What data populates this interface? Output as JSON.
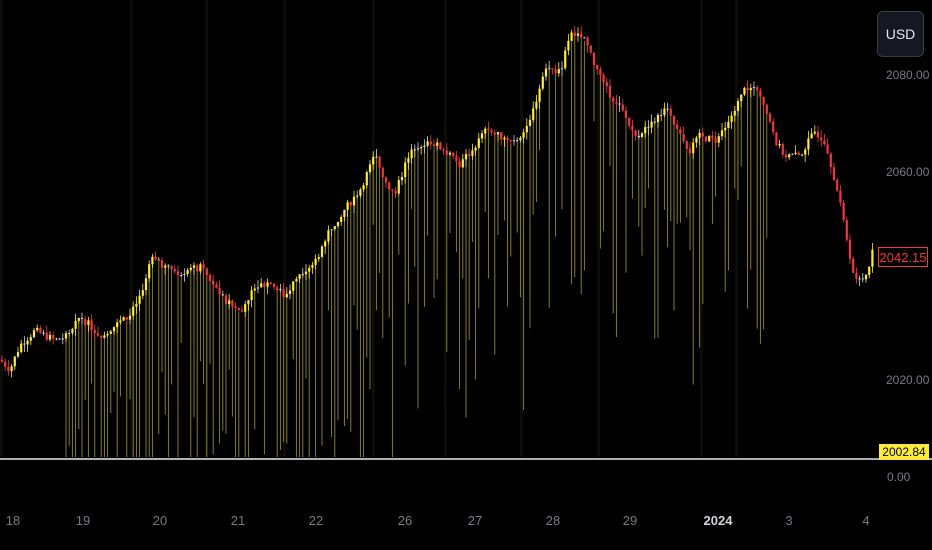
{
  "controls": {
    "currency": "USD"
  },
  "price_axis": {
    "ticks": [
      "2080.00",
      "2060.00",
      "2020.00"
    ],
    "last_price": "2042.15",
    "low_marker": "2002.84",
    "indicator_zero": "0.00"
  },
  "time_axis": {
    "labels": [
      "18",
      "19",
      "20",
      "21",
      "22",
      "26",
      "27",
      "28",
      "29",
      "2024",
      "3",
      "4"
    ],
    "bold_label": "2024"
  },
  "colors": {
    "up": "#ffeb3b",
    "down": "#f23645",
    "neutral": "#d1d4dc",
    "volume": "#8f8a2a",
    "background": "#000000"
  },
  "chart_data": {
    "type": "candlestick",
    "y_unit": "USD",
    "ylim": [
      1998,
      2092
    ],
    "x_labels": [
      "18",
      "19",
      "20",
      "21",
      "22",
      "26",
      "27",
      "28",
      "29",
      "2024",
      "3",
      "4"
    ],
    "price_path": [
      [
        0,
        2018
      ],
      [
        10,
        2016
      ],
      [
        20,
        2021
      ],
      [
        35,
        2024
      ],
      [
        55,
        2022
      ],
      [
        70,
        2023
      ],
      [
        80,
        2027
      ],
      [
        90,
        2025
      ],
      [
        100,
        2023
      ],
      [
        115,
        2025
      ],
      [
        130,
        2027
      ],
      [
        145,
        2033
      ],
      [
        152,
        2040
      ],
      [
        165,
        2037
      ],
      [
        180,
        2036
      ],
      [
        200,
        2037
      ],
      [
        212,
        2034
      ],
      [
        225,
        2030
      ],
      [
        240,
        2028
      ],
      [
        255,
        2033
      ],
      [
        270,
        2034
      ],
      [
        285,
        2031
      ],
      [
        300,
        2036
      ],
      [
        315,
        2038
      ],
      [
        330,
        2045
      ],
      [
        345,
        2049
      ],
      [
        360,
        2053
      ],
      [
        375,
        2060
      ],
      [
        385,
        2055
      ],
      [
        395,
        2052
      ],
      [
        405,
        2058
      ],
      [
        415,
        2062
      ],
      [
        430,
        2063
      ],
      [
        445,
        2061
      ],
      [
        460,
        2058
      ],
      [
        475,
        2062
      ],
      [
        485,
        2065
      ],
      [
        500,
        2064
      ],
      [
        515,
        2063
      ],
      [
        530,
        2067
      ],
      [
        545,
        2078
      ],
      [
        560,
        2077
      ],
      [
        570,
        2085
      ],
      [
        585,
        2084
      ],
      [
        595,
        2078
      ],
      [
        605,
        2074
      ],
      [
        620,
        2070
      ],
      [
        635,
        2064
      ],
      [
        650,
        2066
      ],
      [
        665,
        2070
      ],
      [
        680,
        2064
      ],
      [
        690,
        2061
      ],
      [
        700,
        2064
      ],
      [
        715,
        2063
      ],
      [
        730,
        2067
      ],
      [
        745,
        2074
      ],
      [
        760,
        2073
      ],
      [
        775,
        2063
      ],
      [
        785,
        2060
      ],
      [
        800,
        2060
      ],
      [
        815,
        2065
      ],
      [
        825,
        2063
      ],
      [
        835,
        2055
      ],
      [
        845,
        2045
      ],
      [
        855,
        2034
      ],
      [
        865,
        2035
      ],
      [
        875,
        2042
      ]
    ],
    "volume_start_x": 65,
    "volume_end_x": 775,
    "last_close": 2042.15
  }
}
